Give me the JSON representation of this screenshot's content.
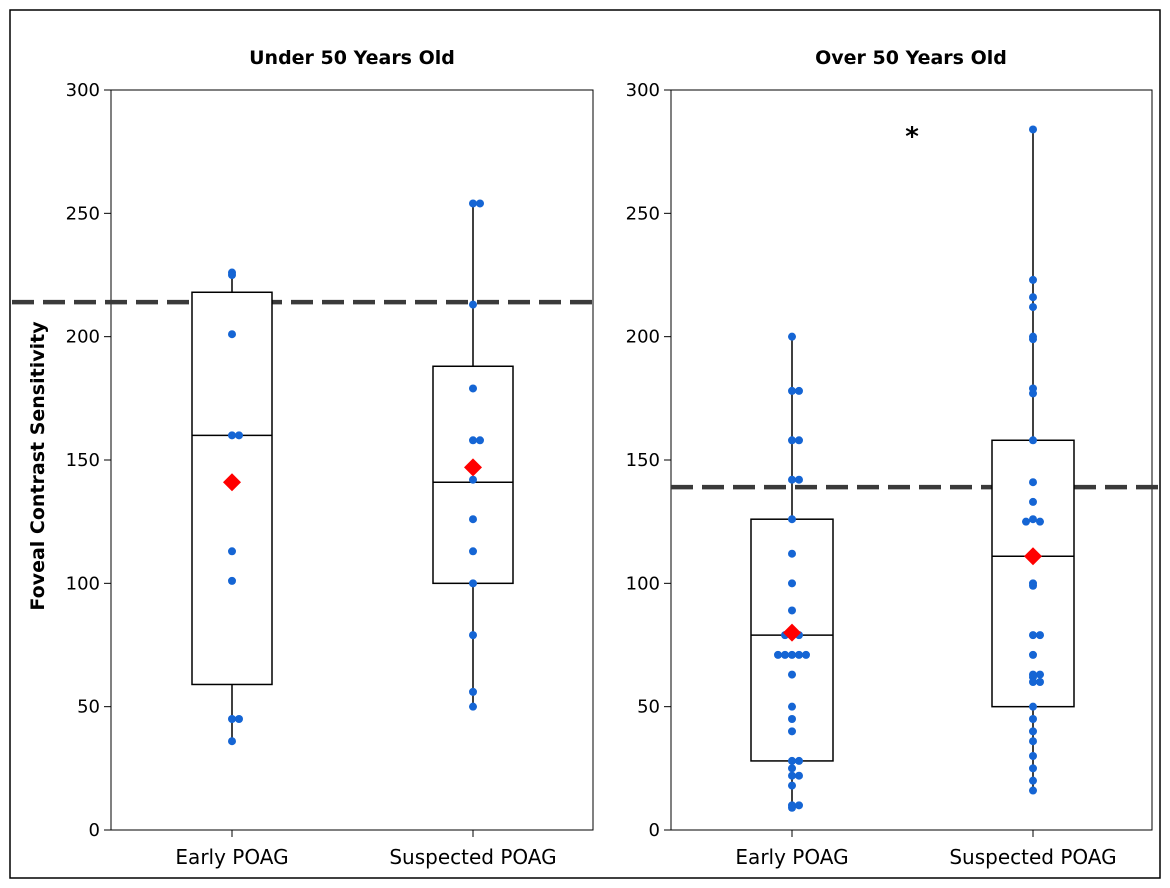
{
  "chart_data": [
    {
      "type": "box",
      "title": "Under 50 Years Old",
      "ylabel": "Foveal Contrast Sensitivity",
      "ylim": [
        0,
        300
      ],
      "yticks": [
        0,
        50,
        100,
        150,
        200,
        250,
        300
      ],
      "categories": [
        "Early POAG",
        "Suspected POAG"
      ],
      "reference_line": 214,
      "annotation": "",
      "groups": [
        {
          "category": "Early POAG",
          "q1": 59,
          "median": 160,
          "q3": 218,
          "whisker_low": 36,
          "whisker_high": 226,
          "mean": 141,
          "points": [
            226,
            225,
            201,
            160,
            160,
            113,
            101,
            45,
            45,
            36
          ]
        },
        {
          "category": "Suspected POAG",
          "q1": 100,
          "median": 141,
          "q3": 188,
          "whisker_low": 50,
          "whisker_high": 254,
          "mean": 147,
          "points": [
            254,
            254,
            213,
            179,
            158,
            158,
            147,
            142,
            126,
            113,
            100,
            79,
            56,
            50
          ]
        }
      ]
    },
    {
      "type": "box",
      "title": "Over 50 Years Old",
      "ylabel": "",
      "ylim": [
        0,
        300
      ],
      "yticks": [
        0,
        50,
        100,
        150,
        200,
        250,
        300
      ],
      "categories": [
        "Early POAG",
        "Suspected POAG"
      ],
      "reference_line": 139,
      "annotation": "*",
      "groups": [
        {
          "category": "Early POAG",
          "q1": 28,
          "median": 79,
          "q3": 126,
          "whisker_low": 9,
          "whisker_high": 200,
          "mean": 80,
          "points": [
            200,
            178,
            178,
            158,
            158,
            142,
            142,
            126,
            112,
            100,
            89,
            79,
            79,
            79,
            71,
            71,
            71,
            71,
            71,
            63,
            50,
            45,
            40,
            28,
            28,
            25,
            22,
            22,
            18,
            10,
            10,
            9
          ]
        },
        {
          "category": "Suspected POAG",
          "q1": 50,
          "median": 111,
          "q3": 158,
          "whisker_low": 16,
          "whisker_high": 284,
          "mean": 111,
          "points": [
            284,
            223,
            216,
            212,
            200,
            199,
            179,
            177,
            158,
            141,
            133,
            126,
            125,
            125,
            112,
            100,
            99,
            79,
            79,
            71,
            63,
            63,
            62,
            60,
            60,
            50,
            45,
            40,
            36,
            30,
            25,
            20,
            16
          ]
        }
      ]
    }
  ],
  "colors": {
    "point": "#1565d4",
    "mean_marker": "#ff0000",
    "reference_line": "#3a3a3a",
    "box_stroke": "#000000"
  }
}
